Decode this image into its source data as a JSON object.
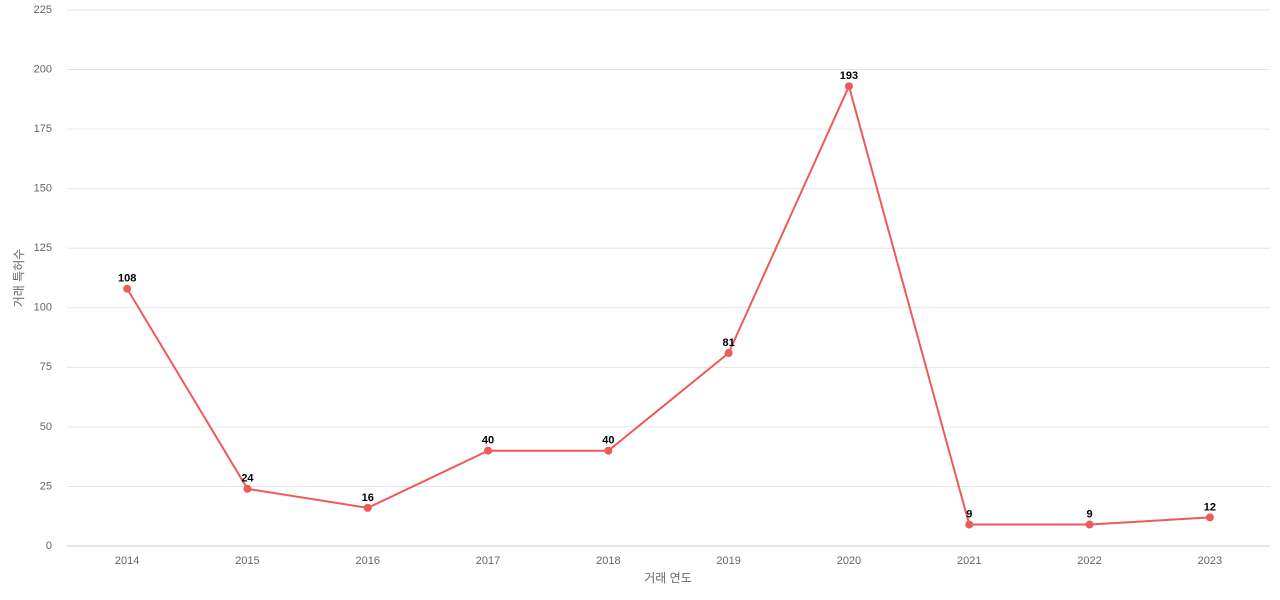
{
  "chart_data": {
    "type": "line",
    "x_label": "거래 연도",
    "y_label": "거래 특허수",
    "categories": [
      "2014",
      "2015",
      "2016",
      "2017",
      "2018",
      "2019",
      "2020",
      "2021",
      "2022",
      "2023"
    ],
    "series": [
      {
        "name": "거래 특허수",
        "color": "#ee5a5a",
        "values": [
          108,
          24,
          16,
          40,
          40,
          81,
          193,
          9,
          9,
          12
        ]
      }
    ],
    "ylim": [
      0,
      225
    ],
    "yticks": [
      0,
      25,
      50,
      75,
      100,
      125,
      150,
      175,
      200,
      225
    ],
    "grid": true
  }
}
